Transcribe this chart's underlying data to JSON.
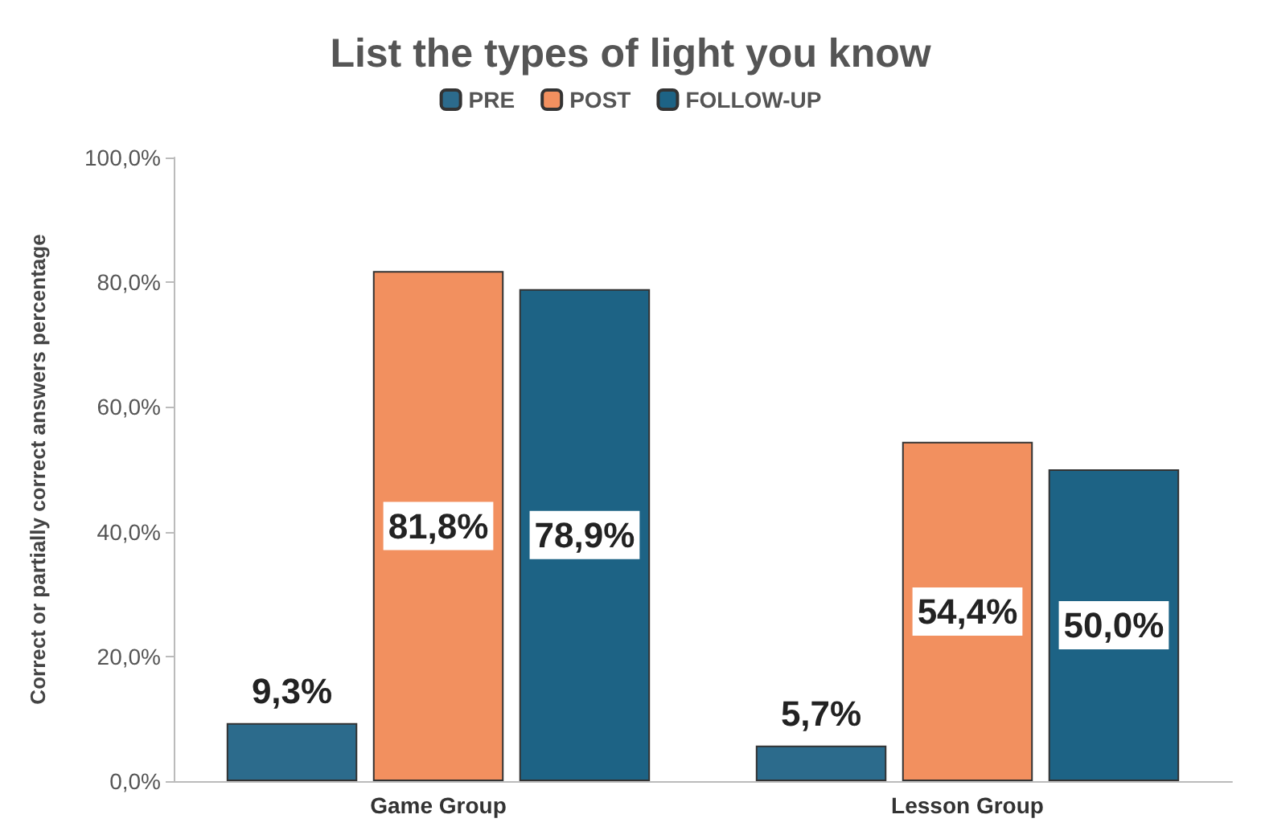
{
  "chart_data": {
    "type": "bar",
    "title": "List the types of light you know",
    "ylabel": "Correct or partially correct answers percentage",
    "categories": [
      "Game Group",
      "Lesson Group"
    ],
    "series": [
      {
        "name": "PRE",
        "color": "#2c6b8c",
        "values": [
          9.3,
          5.7
        ],
        "value_labels": [
          "9,3%",
          "5,7%"
        ]
      },
      {
        "name": "POST",
        "color": "#f2905f",
        "values": [
          81.8,
          54.4
        ],
        "value_labels": [
          "81,8%",
          "54,4%"
        ]
      },
      {
        "name": "FOLLOW-UP",
        "color": "#1d6385",
        "values": [
          78.9,
          50.0
        ],
        "value_labels": [
          "78,9%",
          "50,0%"
        ]
      }
    ],
    "ylim": [
      0,
      100
    ],
    "yticks": [
      {
        "value": 0,
        "label": "0,0%"
      },
      {
        "value": 20,
        "label": "20,0%"
      },
      {
        "value": 40,
        "label": "40,0%"
      },
      {
        "value": 60,
        "label": "60,0%"
      },
      {
        "value": 80,
        "label": "80,0%"
      },
      {
        "value": 100,
        "label": "100,0%"
      }
    ],
    "grid": false,
    "legend": "top"
  }
}
